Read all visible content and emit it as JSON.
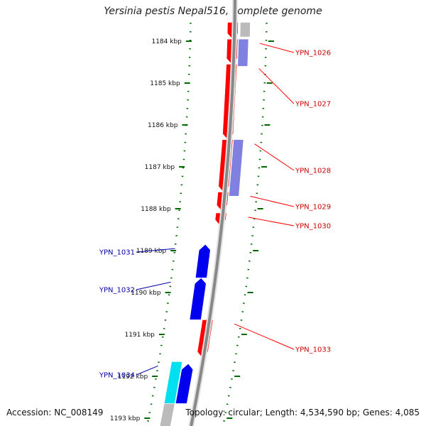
{
  "title": "Yersinia pestis Nepal516, complete genome",
  "footer": {
    "accession": "Accession: NC_008149",
    "summary": "Topology: circular; Length: 4,534,590 bp; Genes: 4,085"
  },
  "ticks": [
    "1184 kbp",
    "1185 kbp",
    "1186 kbp",
    "1187 kbp",
    "1188 kbp",
    "1189 kbp",
    "1190 kbp",
    "1191 kbp",
    "1192 kbp",
    "1193 kbp"
  ],
  "colors": {
    "forward_gene": "#ff0000",
    "reverse_gene": "#0000ee",
    "forward_label": "#cc0000",
    "reverse_label": "#0000aa",
    "forward_other": "#8080e0",
    "reverse_other": "#00e0f0",
    "backbone": "#888888",
    "tick": "#006600"
  },
  "genes_forward": [
    {
      "name": "",
      "start": 1183.55,
      "end": 1183.95,
      "label": false
    },
    {
      "name": "YPN_1026",
      "start": 1183.95,
      "end": 1184.55,
      "label": true
    },
    {
      "name": "YPN_1027",
      "start": 1184.55,
      "end": 1186.35,
      "label": true
    },
    {
      "name": "YPN_1028",
      "start": 1186.35,
      "end": 1187.6,
      "label": true
    },
    {
      "name": "YPN_1029",
      "start": 1187.6,
      "end": 1188.05,
      "label": true
    },
    {
      "name": "YPN_1030",
      "start": 1188.1,
      "end": 1188.4,
      "label": true
    },
    {
      "name": "YPN_1033",
      "start": 1190.65,
      "end": 1191.55,
      "label": true
    }
  ],
  "genes_forward_other": [
    {
      "start": 1183.95,
      "end": 1184.6
    },
    {
      "start": 1186.35,
      "end": 1187.7
    }
  ],
  "genes_forward_grey": [
    {
      "start": 1183.55,
      "end": 1183.9
    }
  ],
  "genes_reverse": [
    {
      "name": "YPN_1031",
      "start": 1188.85,
      "end": 1189.65,
      "label": true
    },
    {
      "name": "YPN_1032",
      "start": 1189.65,
      "end": 1190.65,
      "label": true
    },
    {
      "name": "",
      "start": 1191.7,
      "end": 1192.65,
      "label": false
    }
  ],
  "genes_reverse_other": [
    {
      "name": "YPN_1034",
      "start": 1191.65,
      "end": 1192.65,
      "label": true
    }
  ],
  "genes_reverse_grey": [
    {
      "start": 1192.65,
      "end": 1193.2
    }
  ]
}
